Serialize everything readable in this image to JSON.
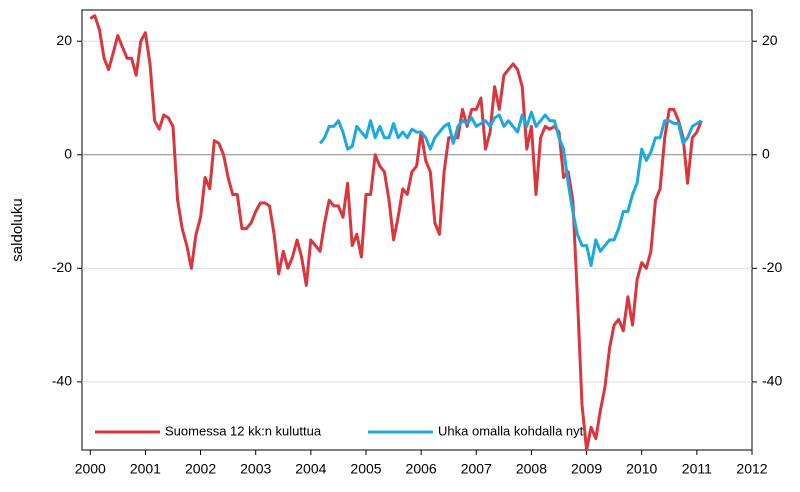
{
  "chart_data": {
    "type": "line",
    "y_label": "saldoluku",
    "x": [
      2000,
      2000.083,
      2000.167,
      2000.25,
      2000.333,
      2000.417,
      2000.5,
      2000.583,
      2000.667,
      2000.75,
      2000.833,
      2000.917,
      2001,
      2001.083,
      2001.167,
      2001.25,
      2001.333,
      2001.417,
      2001.5,
      2001.583,
      2001.667,
      2001.75,
      2001.833,
      2001.917,
      2002,
      2002.083,
      2002.167,
      2002.25,
      2002.333,
      2002.417,
      2002.5,
      2002.583,
      2002.667,
      2002.75,
      2002.833,
      2002.917,
      2003,
      2003.083,
      2003.167,
      2003.25,
      2003.333,
      2003.417,
      2003.5,
      2003.583,
      2003.667,
      2003.75,
      2003.833,
      2003.917,
      2004,
      2004.083,
      2004.167,
      2004.25,
      2004.333,
      2004.417,
      2004.5,
      2004.583,
      2004.667,
      2004.75,
      2004.833,
      2004.917,
      2005,
      2005.083,
      2005.167,
      2005.25,
      2005.333,
      2005.417,
      2005.5,
      2005.583,
      2005.667,
      2005.75,
      2005.833,
      2005.917,
      2006,
      2006.083,
      2006.167,
      2006.25,
      2006.333,
      2006.417,
      2006.5,
      2006.583,
      2006.667,
      2006.75,
      2006.833,
      2006.917,
      2007,
      2007.083,
      2007.167,
      2007.25,
      2007.333,
      2007.417,
      2007.5,
      2007.583,
      2007.667,
      2007.75,
      2007.833,
      2007.917,
      2008,
      2008.083,
      2008.167,
      2008.25,
      2008.333,
      2008.417,
      2008.5,
      2008.583,
      2008.667,
      2008.75,
      2008.833,
      2008.917,
      2009,
      2009.083,
      2009.167,
      2009.25,
      2009.333,
      2009.417,
      2009.5,
      2009.583,
      2009.667,
      2009.75,
      2009.833,
      2009.917,
      2010,
      2010.083,
      2010.167,
      2010.25,
      2010.333,
      2010.417,
      2010.5,
      2010.583,
      2010.667,
      2010.75,
      2010.833,
      2010.917,
      2011,
      2011.083
    ],
    "series": [
      {
        "name": "Suomessa 12 kk:n kuluttua",
        "color": "#d9363e",
        "values": [
          24,
          24.5,
          22,
          17,
          15,
          18,
          21,
          19,
          17,
          17,
          14,
          20,
          21.5,
          16,
          6,
          4.5,
          7,
          6.5,
          5,
          -8,
          -13,
          -16,
          -20,
          -14,
          -11,
          -4,
          -6,
          2.5,
          2,
          0,
          -4,
          -7,
          -7,
          -13,
          -13,
          -12,
          -10,
          -8.5,
          -8.5,
          -9,
          -14,
          -21,
          -17,
          -20,
          -18,
          -15,
          -18,
          -23,
          -15,
          -16,
          -17,
          -12,
          -8,
          -9,
          -9,
          -11,
          -5,
          -16,
          -14,
          -18,
          -7,
          -7,
          0,
          -2,
          -3,
          -8,
          -15,
          -11,
          -6,
          -7,
          -3,
          -2,
          4,
          -1,
          -3,
          -12,
          -14,
          -3,
          3,
          3,
          3,
          8,
          5,
          8,
          8,
          10,
          1,
          4,
          12,
          8,
          14,
          15,
          16,
          15,
          12,
          1,
          5,
          -7,
          3,
          5,
          4.5,
          5,
          4,
          -4,
          -3,
          -8,
          -25,
          -44,
          -52,
          -48,
          -50,
          -45,
          -41,
          -34,
          -30,
          -29,
          -31,
          -25,
          -30,
          -22,
          -19,
          -20,
          -17,
          -8,
          -6,
          3,
          8,
          8,
          6,
          3,
          -5,
          3,
          4,
          6
        ]
      },
      {
        "name": "Uhka omalla kohdalla nyt",
        "color": "#1ea8e0",
        "values": [
          null,
          null,
          null,
          null,
          null,
          null,
          null,
          null,
          null,
          null,
          null,
          null,
          null,
          null,
          null,
          null,
          null,
          null,
          null,
          null,
          null,
          null,
          null,
          null,
          null,
          null,
          null,
          null,
          null,
          null,
          null,
          null,
          null,
          null,
          null,
          null,
          null,
          null,
          null,
          null,
          null,
          null,
          null,
          null,
          null,
          null,
          null,
          null,
          null,
          null,
          2,
          3,
          5,
          5,
          6,
          4,
          1,
          1.5,
          5,
          4,
          3,
          6,
          3,
          5,
          3,
          3,
          5.5,
          3,
          4,
          3,
          4.5,
          4,
          4,
          3,
          1,
          3,
          4,
          5,
          5.5,
          2,
          5,
          6,
          5.5,
          6.5,
          5,
          5.5,
          6,
          5,
          6.5,
          7,
          5,
          6,
          5,
          4,
          7,
          5,
          7.5,
          5,
          6,
          7,
          6,
          6,
          3,
          1,
          -5,
          -10,
          -14,
          -16,
          -16,
          -19.5,
          -15,
          -17,
          -16,
          -15,
          -15,
          -13,
          -10,
          -10,
          -7,
          -5,
          1,
          -1,
          0.5,
          3,
          3,
          6,
          6,
          5.5,
          5.5,
          2,
          3,
          5,
          5.5,
          6
        ]
      }
    ],
    "xlim": [
      1999.85,
      2012
    ],
    "xticks": [
      2000,
      2001,
      2002,
      2003,
      2004,
      2005,
      2006,
      2007,
      2008,
      2009,
      2010,
      2011,
      2012
    ],
    "ylim": [
      -52,
      25.5
    ],
    "yticks": [
      -40,
      -20,
      0,
      20
    ],
    "grid": true
  }
}
